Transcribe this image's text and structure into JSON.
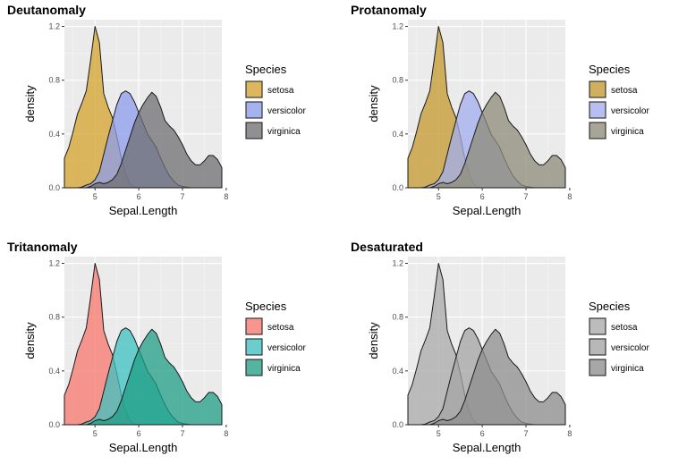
{
  "chart_data": [
    {
      "type": "area",
      "title": "Deutanomaly",
      "xlabel": "Sepal.Length",
      "ylabel": "density",
      "xlim": [
        4.3,
        7.9
      ],
      "ylim": [
        0,
        1.25
      ],
      "xticks": [
        "5",
        "6",
        "7",
        "8"
      ],
      "yticks": [
        "0.0",
        "0.4",
        "0.8",
        "1.2"
      ],
      "grid": true,
      "legend_title": "Species",
      "legend_position": "right",
      "series": [
        {
          "name": "setosa",
          "color": "#D4A32B"
        },
        {
          "name": "versicolor",
          "color": "#8C9CEC"
        },
        {
          "name": "virginica",
          "color": "#6F6F72"
        }
      ]
    },
    {
      "type": "area",
      "title": "Protanomaly",
      "xlabel": "Sepal.Length",
      "ylabel": "density",
      "xlim": [
        4.3,
        7.9
      ],
      "ylim": [
        0,
        1.25
      ],
      "xticks": [
        "5",
        "6",
        "7",
        "8"
      ],
      "yticks": [
        "0.0",
        "0.4",
        "0.8",
        "1.2"
      ],
      "grid": true,
      "legend_title": "Species",
      "legend_position": "right",
      "series": [
        {
          "name": "setosa",
          "color": "#C4992E"
        },
        {
          "name": "versicolor",
          "color": "#A2AEEE"
        },
        {
          "name": "virginica",
          "color": "#8E8B78"
        }
      ]
    },
    {
      "type": "area",
      "title": "Tritanomaly",
      "xlabel": "Sepal.Length",
      "ylabel": "density",
      "xlim": [
        4.3,
        7.9
      ],
      "ylim": [
        0,
        1.25
      ],
      "xticks": [
        "5",
        "6",
        "7",
        "8"
      ],
      "yticks": [
        "0.0",
        "0.4",
        "0.8",
        "1.2"
      ],
      "grid": true,
      "legend_title": "Species",
      "legend_position": "right",
      "series": [
        {
          "name": "setosa",
          "color": "#F8766D"
        },
        {
          "name": "versicolor",
          "color": "#3EC1C1"
        },
        {
          "name": "virginica",
          "color": "#1F9E86"
        }
      ]
    },
    {
      "type": "area",
      "title": "Desaturated",
      "xlabel": "Sepal.Length",
      "ylabel": "density",
      "xlim": [
        4.3,
        7.9
      ],
      "ylim": [
        0,
        1.25
      ],
      "xticks": [
        "5",
        "6",
        "7",
        "8"
      ],
      "yticks": [
        "0.0",
        "0.4",
        "0.8",
        "1.2"
      ],
      "grid": true,
      "legend_title": "Species",
      "legend_position": "right",
      "series": [
        {
          "name": "setosa",
          "color": "#A9A9A9"
        },
        {
          "name": "versicolor",
          "color": "#A4A4A4"
        },
        {
          "name": "virginica",
          "color": "#8E8E8E"
        }
      ]
    }
  ],
  "density_curves": {
    "x": [
      4.3,
      4.4,
      4.5,
      4.6,
      4.7,
      4.8,
      4.9,
      5.0,
      5.1,
      5.2,
      5.3,
      5.4,
      5.5,
      5.6,
      5.7,
      5.8,
      5.9,
      6.0,
      6.1,
      6.2,
      6.3,
      6.4,
      6.5,
      6.6,
      6.7,
      6.8,
      6.9,
      7.0,
      7.1,
      7.2,
      7.3,
      7.4,
      7.5,
      7.6,
      7.7,
      7.8,
      7.9
    ],
    "setosa": [
      0.22,
      0.3,
      0.42,
      0.55,
      0.63,
      0.72,
      0.95,
      1.2,
      1.08,
      0.7,
      0.6,
      0.52,
      0.38,
      0.22,
      0.1,
      0.03,
      0.005,
      0,
      0,
      0,
      0,
      0,
      0,
      0,
      0,
      0,
      0,
      0,
      0,
      0,
      0,
      0,
      0,
      0,
      0,
      0,
      0
    ],
    "versicolor": [
      0,
      0,
      0,
      0,
      0.005,
      0.02,
      0.03,
      0.06,
      0.12,
      0.25,
      0.38,
      0.5,
      0.62,
      0.7,
      0.72,
      0.7,
      0.64,
      0.56,
      0.48,
      0.4,
      0.35,
      0.3,
      0.22,
      0.15,
      0.09,
      0.05,
      0.02,
      0.01,
      0.005,
      0,
      0,
      0,
      0,
      0,
      0,
      0,
      0
    ],
    "virginica": [
      0,
      0,
      0,
      0,
      0,
      0,
      0.01,
      0.03,
      0.04,
      0.03,
      0.04,
      0.06,
      0.1,
      0.18,
      0.28,
      0.38,
      0.48,
      0.56,
      0.62,
      0.67,
      0.71,
      0.68,
      0.6,
      0.5,
      0.46,
      0.43,
      0.38,
      0.32,
      0.25,
      0.2,
      0.17,
      0.17,
      0.2,
      0.24,
      0.24,
      0.21,
      0.15
    ]
  }
}
